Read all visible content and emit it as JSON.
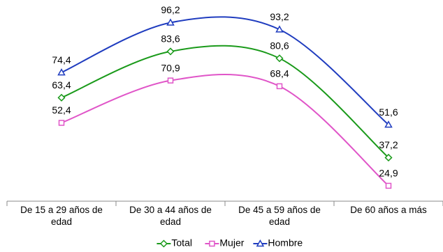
{
  "chart_data": {
    "type": "line",
    "categories": [
      "De 15 a 29 años de edad",
      "De 30 a 44 años de edad",
      "De 45 a 59 años de edad",
      "De 60 años a más"
    ],
    "series": [
      {
        "name": "Total",
        "color": "#1a9a1a",
        "marker": "diamond",
        "values": [
          63.4,
          83.6,
          80.6,
          37.2
        ],
        "value_labels": [
          "63,4",
          "83,6",
          "80,6",
          "37,2"
        ]
      },
      {
        "name": "Mujer",
        "color": "#e055c8",
        "marker": "square",
        "values": [
          52.4,
          70.9,
          68.4,
          24.9
        ],
        "value_labels": [
          "52,4",
          "70,9",
          "68,4",
          "24,9"
        ]
      },
      {
        "name": "Hombre",
        "color": "#1f3cbf",
        "marker": "triangle",
        "values": [
          74.4,
          96.2,
          93.2,
          51.6
        ],
        "value_labels": [
          "74,4",
          "96,2",
          "93,2",
          "51,6"
        ]
      }
    ],
    "ylim": [
      20,
      100
    ],
    "smooth": true,
    "legend": "bottom"
  }
}
